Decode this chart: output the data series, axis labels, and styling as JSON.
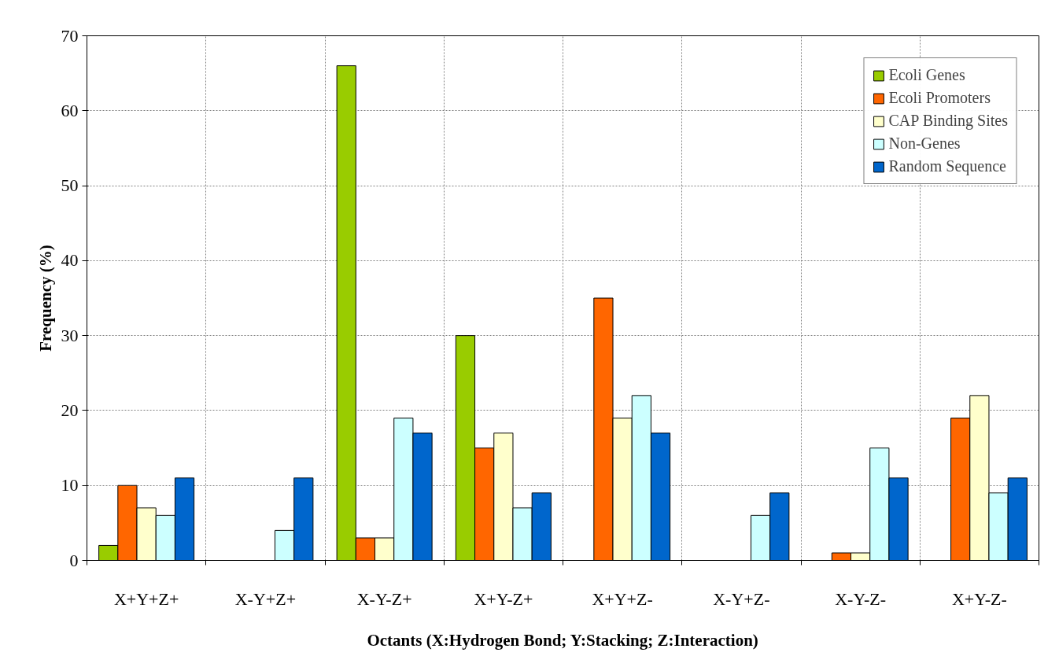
{
  "chart_data": {
    "type": "bar",
    "xlabel": "Octants (X:Hydrogen Bond; Y:Stacking; Z:Interaction)",
    "ylabel": "Frequency (%)",
    "categories": [
      "X+Y+Z+",
      "X-Y+Z+",
      "X-Y-Z+",
      "X+Y-Z+",
      "X+Y+Z-",
      "X-Y+Z-",
      "X-Y-Z-",
      "X+Y-Z-"
    ],
    "series": [
      {
        "name": "Ecoli Genes",
        "color": "#99cc00",
        "values": [
          2,
          0,
          66,
          30,
          0,
          0,
          0,
          0
        ]
      },
      {
        "name": "Ecoli Promoters",
        "color": "#ff6600",
        "values": [
          10,
          0,
          3,
          15,
          35,
          0,
          1,
          19
        ]
      },
      {
        "name": "CAP Binding Sites",
        "color": "#ffffcc",
        "values": [
          7,
          0,
          3,
          17,
          19,
          0,
          1,
          22
        ]
      },
      {
        "name": "Non-Genes",
        "color": "#ccffff",
        "values": [
          6,
          4,
          19,
          7,
          22,
          6,
          15,
          9
        ]
      },
      {
        "name": "Random Sequence",
        "color": "#0066cc",
        "values": [
          11,
          11,
          17,
          9,
          17,
          9,
          11,
          11
        ]
      }
    ],
    "ylim": [
      0,
      70
    ],
    "yticks": [
      0,
      10,
      20,
      30,
      40,
      50,
      60,
      70
    ],
    "grid": true,
    "legend": "top right"
  }
}
